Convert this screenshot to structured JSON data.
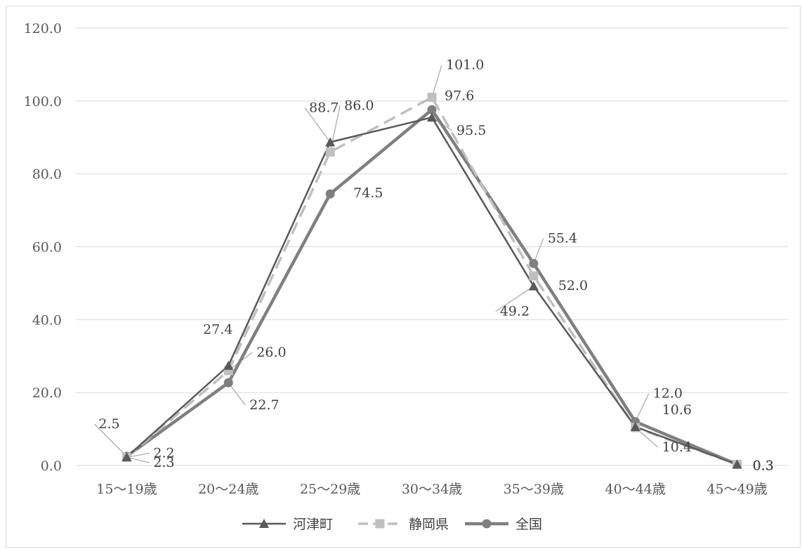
{
  "chart_data": {
    "type": "line",
    "title": "",
    "xlabel": "",
    "ylabel": "",
    "categories": [
      "15～19歳",
      "20～24歳",
      "25～29歳",
      "30～34歳",
      "35～39歳",
      "40～44歳",
      "45～49歳"
    ],
    "ylim": [
      0,
      120
    ],
    "yticks": [
      "0.0",
      "20.0",
      "40.0",
      "60.0",
      "80.0",
      "100.0",
      "120.0"
    ],
    "grid": true,
    "legend_position": "bottom",
    "series": [
      {
        "name": "河津町",
        "values": [
          2.3,
          27.4,
          88.7,
          95.5,
          49.2,
          10.6,
          0.3
        ],
        "labels": [
          "2.3",
          "27.4",
          "88.7",
          "95.5",
          "49.2",
          "10.6",
          "0.3"
        ],
        "color": "#595959",
        "marker": "triangle",
        "dash": false
      },
      {
        "name": "静岡県",
        "values": [
          2.2,
          26.0,
          86.0,
          101.0,
          52.0,
          10.4,
          0.3
        ],
        "labels": [
          "2.2",
          "26.0",
          "86.0",
          "101.0",
          "52.0",
          "10.4",
          "0.3"
        ],
        "color": "#bfbfbf",
        "marker": "square",
        "dash": true
      },
      {
        "name": "全国",
        "values": [
          2.5,
          22.7,
          74.5,
          97.6,
          55.4,
          12.0,
          0.3
        ],
        "labels": [
          "2.5",
          "22.7",
          "74.5",
          "97.6",
          "55.4",
          "12.0",
          "0.3"
        ],
        "color": "#7f7f7f",
        "marker": "circle",
        "dash": false
      }
    ]
  }
}
